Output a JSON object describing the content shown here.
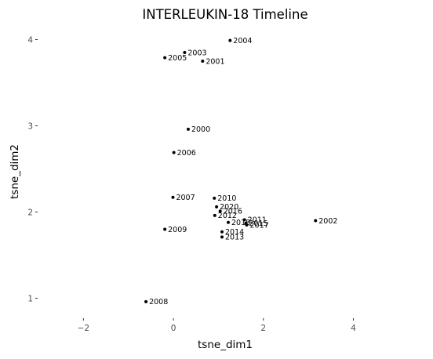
{
  "chart_data": {
    "type": "scatter",
    "title": "INTERLEUKIN-18 Timeline",
    "xlabel": "tsne_dim1",
    "ylabel": "tsne_dim2",
    "xlim": [
      -3.0,
      5.3
    ],
    "ylim": [
      0.85,
      4.15
    ],
    "grid": false,
    "xticks": [
      -2,
      0,
      2,
      4
    ],
    "xtick_labels": [
      "−2",
      "0",
      "2",
      "4"
    ],
    "yticks": [
      1,
      2,
      3,
      4
    ],
    "ytick_labels": [
      "1",
      "2",
      "3",
      "4"
    ],
    "points": [
      {
        "label": "2004",
        "x": 1.26,
        "y": 3.99
      },
      {
        "label": "2003",
        "x": 0.25,
        "y": 3.85
      },
      {
        "label": "2005",
        "x": -0.19,
        "y": 3.79
      },
      {
        "label": "2001",
        "x": 0.65,
        "y": 3.75
      },
      {
        "label": "2000",
        "x": 0.33,
        "y": 2.96
      },
      {
        "label": "2006",
        "x": 0.01,
        "y": 2.69
      },
      {
        "label": "2007",
        "x": -0.01,
        "y": 2.17
      },
      {
        "label": "2010",
        "x": 0.91,
        "y": 2.16
      },
      {
        "label": "2020",
        "x": 0.96,
        "y": 2.06
      },
      {
        "label": "2016",
        "x": 1.04,
        "y": 2.01
      },
      {
        "label": "2012",
        "x": 0.92,
        "y": 1.96
      },
      {
        "label": "2011",
        "x": 1.58,
        "y": 1.91
      },
      {
        "label": "2018",
        "x": 1.22,
        "y": 1.88
      },
      {
        "label": "2015",
        "x": 1.61,
        "y": 1.87
      },
      {
        "label": "2017",
        "x": 1.63,
        "y": 1.85
      },
      {
        "label": "2002",
        "x": 3.16,
        "y": 1.9
      },
      {
        "label": "2009",
        "x": -0.19,
        "y": 1.8
      },
      {
        "label": "2014",
        "x": 1.08,
        "y": 1.77
      },
      {
        "label": "2013",
        "x": 1.08,
        "y": 1.71
      },
      {
        "label": "2008",
        "x": -0.61,
        "y": 0.96
      }
    ]
  }
}
